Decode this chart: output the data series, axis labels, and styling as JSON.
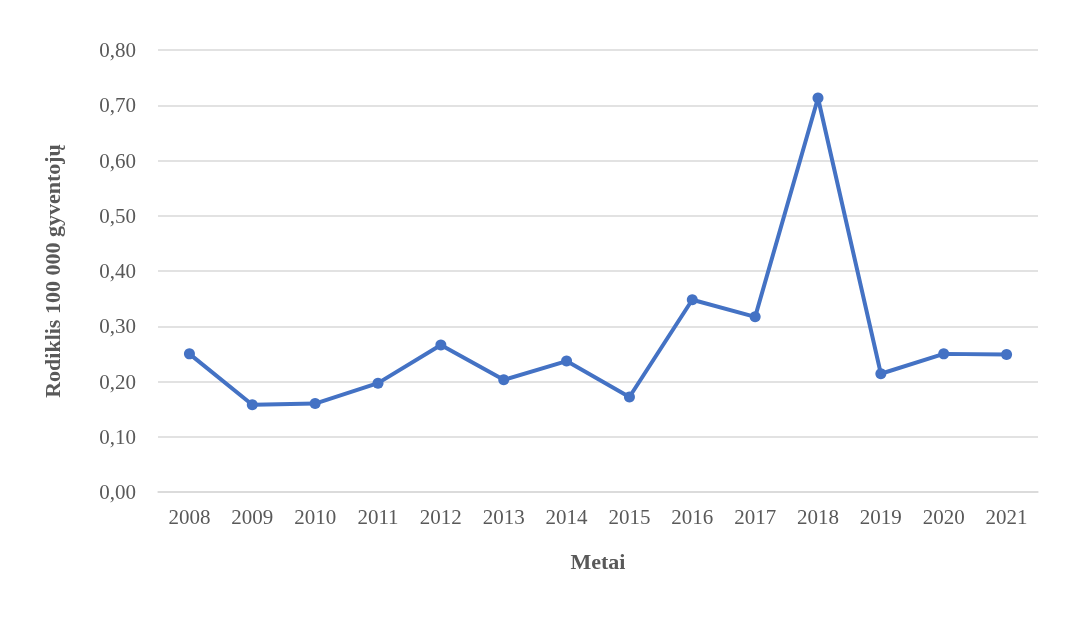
{
  "chart_data": {
    "type": "line",
    "xlabel": "Metai",
    "ylabel": "Rodiklis 100 000 gyventojų",
    "categories": [
      "2008",
      "2009",
      "2010",
      "2011",
      "2012",
      "2013",
      "2014",
      "2015",
      "2016",
      "2017",
      "2018",
      "2019",
      "2020",
      "2021"
    ],
    "series": [
      {
        "color": "#4472c4",
        "values": [
          0.25,
          0.158,
          0.16,
          0.197,
          0.266,
          0.203,
          0.237,
          0.172,
          0.348,
          0.317,
          0.713,
          0.214,
          0.25,
          0.249
        ]
      }
    ],
    "ylim": [
      0,
      0.8
    ],
    "yticks": [
      {
        "value": 0,
        "label": "0,00"
      },
      {
        "value": 0.1,
        "label": "0,10"
      },
      {
        "value": 0.2,
        "label": "0,20"
      },
      {
        "value": 0.3,
        "label": "0,30"
      },
      {
        "value": 0.4,
        "label": "0,40"
      },
      {
        "value": 0.5,
        "label": "0,50"
      },
      {
        "value": 0.6,
        "label": "0,60"
      },
      {
        "value": 0.7,
        "label": "0,70"
      },
      {
        "value": 0.8,
        "label": "0,80"
      }
    ],
    "grid": "y",
    "marker": "circle",
    "line_style": "solid"
  }
}
